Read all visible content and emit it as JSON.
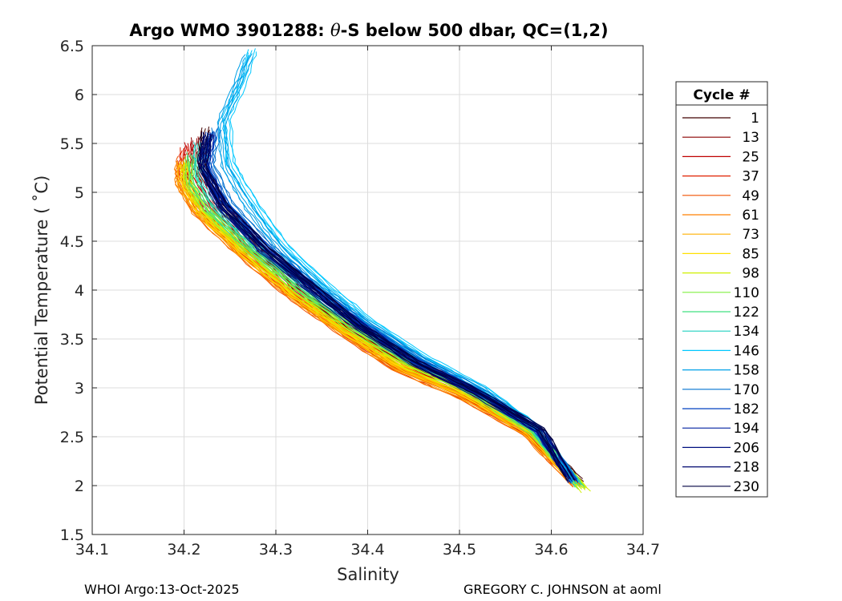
{
  "chart_data": {
    "type": "line",
    "title_prefix": "Argo WMO 3901288: ",
    "title_theta": "θ",
    "title_suffix": "-S below 500 dbar,  QC=(1,2)",
    "xlabel": "Salinity",
    "ylabel": "Potential Temperature ( ˚C)",
    "xlim": [
      34.1,
      34.7
    ],
    "ylim": [
      1.5,
      6.5
    ],
    "xticks": [
      34.1,
      34.2,
      34.3,
      34.4,
      34.5,
      34.6,
      34.7
    ],
    "xtick_labels": [
      "34.1",
      "34.2",
      "34.3",
      "34.4",
      "34.5",
      "34.6",
      "34.7"
    ],
    "yticks": [
      1.5,
      2,
      2.5,
      3,
      3.5,
      4,
      4.5,
      5,
      5.5,
      6,
      6.5
    ],
    "ytick_labels": [
      "1.5",
      "2",
      "2.5",
      "3",
      "3.5",
      "4",
      "4.5",
      "5",
      "5.5",
      "6",
      "6.5"
    ],
    "grid": true,
    "legend_title": "Cycle #",
    "legend_position": "outside-right",
    "series": [
      {
        "name": "1",
        "color": "#400000",
        "values": [
          [
            34.223,
            5.65
          ],
          [
            34.218,
            5.3
          ],
          [
            34.24,
            4.9
          ],
          [
            34.285,
            4.4
          ],
          [
            34.33,
            3.95
          ],
          [
            34.38,
            3.6
          ],
          [
            34.44,
            3.25
          ],
          [
            34.52,
            2.95
          ],
          [
            34.58,
            2.55
          ],
          [
            34.63,
            2.05
          ]
        ]
      },
      {
        "name": "13",
        "color": "#8c0000",
        "values": [
          [
            34.213,
            5.55
          ],
          [
            34.212,
            5.3
          ],
          [
            34.232,
            4.9
          ],
          [
            34.275,
            4.4
          ],
          [
            34.33,
            3.95
          ],
          [
            34.38,
            3.6
          ],
          [
            34.44,
            3.25
          ],
          [
            34.51,
            2.95
          ],
          [
            34.575,
            2.55
          ],
          [
            34.627,
            2.05
          ]
        ]
      },
      {
        "name": "25",
        "color": "#c00000",
        "values": [
          [
            34.205,
            5.5
          ],
          [
            34.203,
            5.2
          ],
          [
            34.225,
            4.85
          ],
          [
            34.27,
            4.4
          ],
          [
            34.32,
            3.95
          ],
          [
            34.37,
            3.6
          ],
          [
            34.435,
            3.22
          ],
          [
            34.505,
            2.93
          ],
          [
            34.575,
            2.55
          ],
          [
            34.627,
            2.02
          ]
        ]
      },
      {
        "name": "37",
        "color": "#e02000",
        "values": [
          [
            34.2,
            5.45
          ],
          [
            34.198,
            5.2
          ],
          [
            34.218,
            4.8
          ],
          [
            34.262,
            4.4
          ],
          [
            34.318,
            3.95
          ],
          [
            34.37,
            3.6
          ],
          [
            34.432,
            3.2
          ],
          [
            34.502,
            2.92
          ],
          [
            34.573,
            2.55
          ],
          [
            34.626,
            2.02
          ]
        ]
      },
      {
        "name": "49",
        "color": "#f05000",
        "values": [
          [
            34.197,
            5.35
          ],
          [
            34.195,
            5.15
          ],
          [
            34.213,
            4.8
          ],
          [
            34.258,
            4.4
          ],
          [
            34.314,
            3.95
          ],
          [
            34.366,
            3.6
          ],
          [
            34.43,
            3.2
          ],
          [
            34.5,
            2.92
          ],
          [
            34.572,
            2.54
          ],
          [
            34.626,
            2.01
          ]
        ]
      },
      {
        "name": "61",
        "color": "#ff8000",
        "values": [
          [
            34.195,
            5.3
          ],
          [
            34.194,
            5.1
          ],
          [
            34.212,
            4.8
          ],
          [
            34.258,
            4.4
          ],
          [
            34.316,
            3.95
          ],
          [
            34.368,
            3.6
          ],
          [
            34.43,
            3.2
          ],
          [
            34.5,
            2.92
          ],
          [
            34.571,
            2.55
          ],
          [
            34.627,
            2.0
          ]
        ]
      },
      {
        "name": "73",
        "color": "#ffb000",
        "values": [
          [
            34.197,
            5.3
          ],
          [
            34.197,
            5.1
          ],
          [
            34.215,
            4.8
          ],
          [
            34.26,
            4.4
          ],
          [
            34.318,
            3.95
          ],
          [
            34.37,
            3.6
          ],
          [
            34.433,
            3.21
          ],
          [
            34.502,
            2.93
          ],
          [
            34.573,
            2.55
          ],
          [
            34.63,
            2.0
          ]
        ]
      },
      {
        "name": "85",
        "color": "#ffe000",
        "values": [
          [
            34.2,
            5.3
          ],
          [
            34.2,
            5.1
          ],
          [
            34.218,
            4.8
          ],
          [
            34.263,
            4.4
          ],
          [
            34.32,
            3.95
          ],
          [
            34.372,
            3.6
          ],
          [
            34.435,
            3.22
          ],
          [
            34.505,
            2.94
          ],
          [
            34.576,
            2.55
          ],
          [
            34.633,
            1.98
          ]
        ]
      },
      {
        "name": "98",
        "color": "#d0f000",
        "values": [
          [
            34.203,
            5.3
          ],
          [
            34.203,
            5.1
          ],
          [
            34.222,
            4.8
          ],
          [
            34.268,
            4.4
          ],
          [
            34.325,
            3.95
          ],
          [
            34.375,
            3.62
          ],
          [
            34.44,
            3.24
          ],
          [
            34.51,
            2.95
          ],
          [
            34.58,
            2.55
          ],
          [
            34.637,
            1.95
          ]
        ]
      },
      {
        "name": "110",
        "color": "#80f040",
        "values": [
          [
            34.205,
            5.35
          ],
          [
            34.206,
            5.1
          ],
          [
            34.226,
            4.8
          ],
          [
            34.272,
            4.4
          ],
          [
            34.328,
            3.97
          ],
          [
            34.38,
            3.63
          ],
          [
            34.443,
            3.26
          ],
          [
            34.512,
            2.96
          ],
          [
            34.58,
            2.55
          ],
          [
            34.632,
            1.98
          ]
        ]
      },
      {
        "name": "122",
        "color": "#40e080",
        "values": [
          [
            34.208,
            5.4
          ],
          [
            34.21,
            5.1
          ],
          [
            34.23,
            4.8
          ],
          [
            34.276,
            4.4
          ],
          [
            34.332,
            3.98
          ],
          [
            34.383,
            3.65
          ],
          [
            34.446,
            3.27
          ],
          [
            34.514,
            2.97
          ],
          [
            34.582,
            2.56
          ],
          [
            34.63,
            2.0
          ]
        ]
      },
      {
        "name": "134",
        "color": "#20d0c0",
        "values": [
          [
            34.215,
            5.5
          ],
          [
            34.215,
            5.2
          ],
          [
            34.235,
            4.85
          ],
          [
            34.282,
            4.42
          ],
          [
            34.338,
            4.0
          ],
          [
            34.388,
            3.66
          ],
          [
            34.45,
            3.29
          ],
          [
            34.517,
            2.98
          ],
          [
            34.583,
            2.57
          ],
          [
            34.628,
            2.02
          ]
        ]
      },
      {
        "name": "146",
        "color": "#00c8ff",
        "values": [
          [
            34.274,
            6.45
          ],
          [
            34.262,
            6.1
          ],
          [
            34.246,
            5.75
          ],
          [
            34.25,
            5.3
          ],
          [
            34.275,
            4.9
          ],
          [
            34.31,
            4.45
          ],
          [
            34.355,
            4.05
          ],
          [
            34.4,
            3.7
          ],
          [
            34.46,
            3.32
          ],
          [
            34.525,
            3.0
          ],
          [
            34.585,
            2.58
          ],
          [
            34.625,
            2.05
          ]
        ]
      },
      {
        "name": "158",
        "color": "#00a0e8",
        "values": [
          [
            34.27,
            6.4
          ],
          [
            34.256,
            6.05
          ],
          [
            34.24,
            5.7
          ],
          [
            34.245,
            5.25
          ],
          [
            34.27,
            4.85
          ],
          [
            34.305,
            4.42
          ],
          [
            34.35,
            4.03
          ],
          [
            34.397,
            3.68
          ],
          [
            34.458,
            3.3
          ],
          [
            34.523,
            2.99
          ],
          [
            34.585,
            2.58
          ],
          [
            34.625,
            2.05
          ]
        ]
      },
      {
        "name": "170",
        "color": "#0070d0",
        "values": [
          [
            34.235,
            5.65
          ],
          [
            34.228,
            5.3
          ],
          [
            34.248,
            4.9
          ],
          [
            34.292,
            4.45
          ],
          [
            34.345,
            4.02
          ],
          [
            34.393,
            3.68
          ],
          [
            34.455,
            3.3
          ],
          [
            34.52,
            2.98
          ],
          [
            34.585,
            2.57
          ],
          [
            34.625,
            2.05
          ]
        ]
      },
      {
        "name": "182",
        "color": "#0040c0",
        "values": [
          [
            34.23,
            5.6
          ],
          [
            34.224,
            5.25
          ],
          [
            34.244,
            4.88
          ],
          [
            34.288,
            4.44
          ],
          [
            34.342,
            4.02
          ],
          [
            34.39,
            3.67
          ],
          [
            34.452,
            3.28
          ],
          [
            34.518,
            2.97
          ],
          [
            34.585,
            2.57
          ],
          [
            34.624,
            2.04
          ]
        ]
      },
      {
        "name": "194",
        "color": "#0020a0",
        "values": [
          [
            34.228,
            5.6
          ],
          [
            34.222,
            5.25
          ],
          [
            34.241,
            4.86
          ],
          [
            34.285,
            4.43
          ],
          [
            34.34,
            4.0
          ],
          [
            34.388,
            3.66
          ],
          [
            34.45,
            3.27
          ],
          [
            34.516,
            2.97
          ],
          [
            34.586,
            2.57
          ],
          [
            34.622,
            2.05
          ]
        ]
      },
      {
        "name": "206",
        "color": "#001080",
        "values": [
          [
            34.225,
            5.55
          ],
          [
            34.22,
            5.25
          ],
          [
            34.24,
            4.86
          ],
          [
            34.284,
            4.42
          ],
          [
            34.338,
            4.0
          ],
          [
            34.386,
            3.65
          ],
          [
            34.448,
            3.27
          ],
          [
            34.515,
            2.96
          ],
          [
            34.586,
            2.57
          ],
          [
            34.622,
            2.06
          ]
        ]
      },
      {
        "name": "218",
        "color": "#000870",
        "values": [
          [
            34.226,
            5.6
          ],
          [
            34.22,
            5.28
          ],
          [
            34.242,
            4.88
          ],
          [
            34.288,
            4.43
          ],
          [
            34.342,
            4.01
          ],
          [
            34.39,
            3.65
          ],
          [
            34.45,
            3.27
          ],
          [
            34.517,
            2.97
          ],
          [
            34.588,
            2.57
          ],
          [
            34.62,
            2.07
          ]
        ]
      },
      {
        "name": "230",
        "color": "#000040",
        "values": [
          [
            34.224,
            5.6
          ],
          [
            34.219,
            5.27
          ],
          [
            34.242,
            4.88
          ],
          [
            34.29,
            4.42
          ],
          [
            34.345,
            4.0
          ],
          [
            34.39,
            3.64
          ],
          [
            34.452,
            3.26
          ],
          [
            34.518,
            2.96
          ],
          [
            34.59,
            2.57
          ],
          [
            34.62,
            2.07
          ]
        ]
      }
    ]
  },
  "footer": {
    "left": "WHOI Argo:13-Oct-2025",
    "right": "GREGORY C. JOHNSON at aoml"
  }
}
